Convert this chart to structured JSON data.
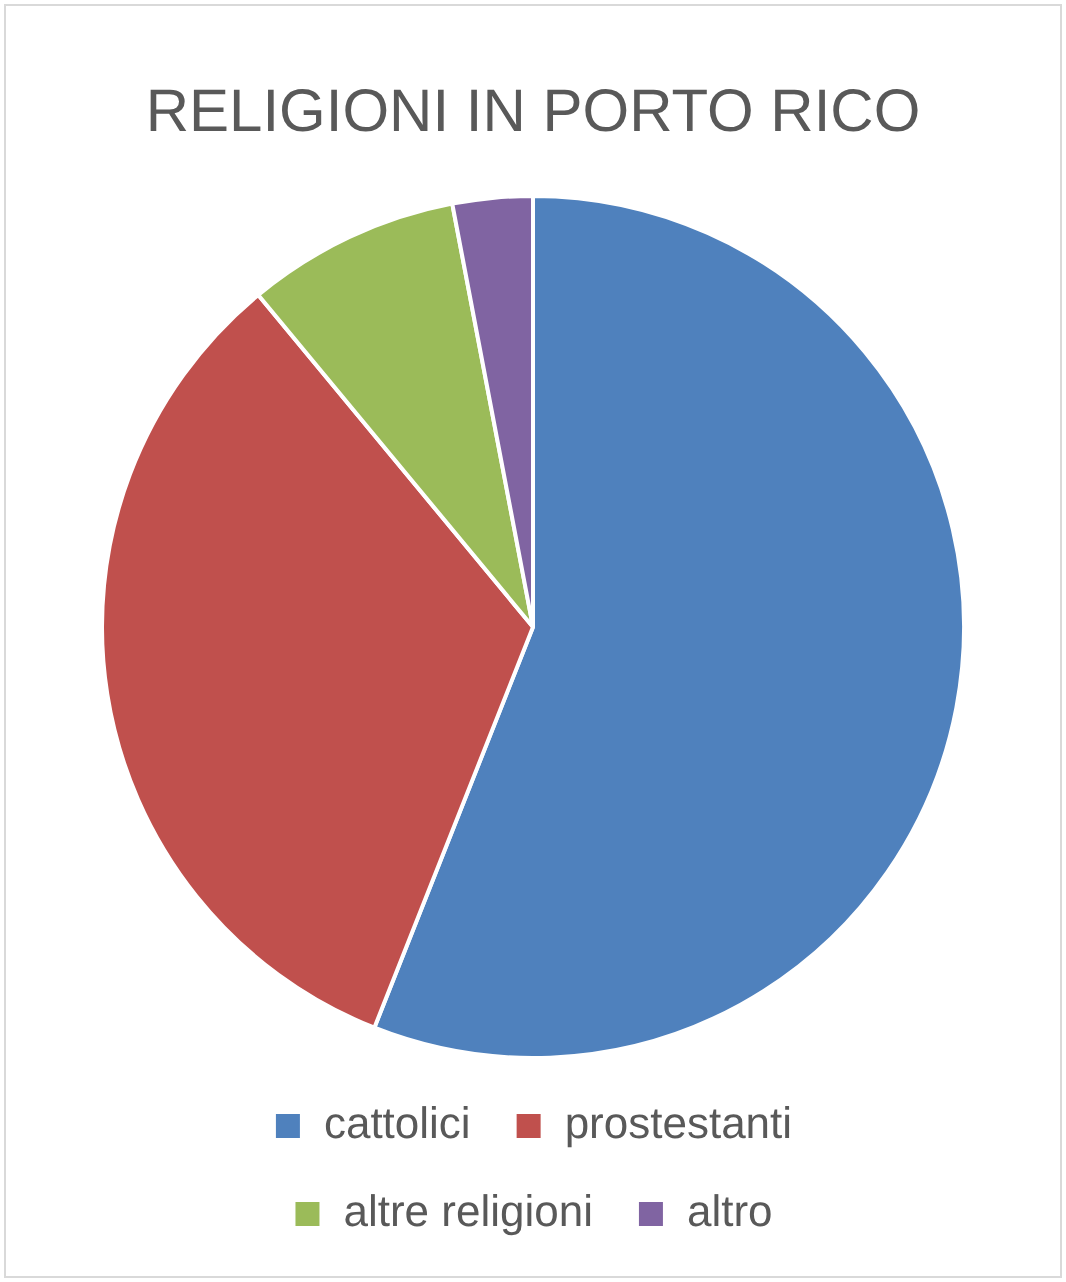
{
  "chart_data": {
    "type": "pie",
    "title": "RELIGIONI IN PORTO RICO",
    "categories": [
      "cattolici",
      "prostestanti",
      "altre religioni",
      "altro"
    ],
    "values": [
      56,
      33,
      8,
      3
    ],
    "colors": [
      "#4f81bd",
      "#c0504d",
      "#9bbb59",
      "#8064a2"
    ],
    "legend": "bottom"
  }
}
